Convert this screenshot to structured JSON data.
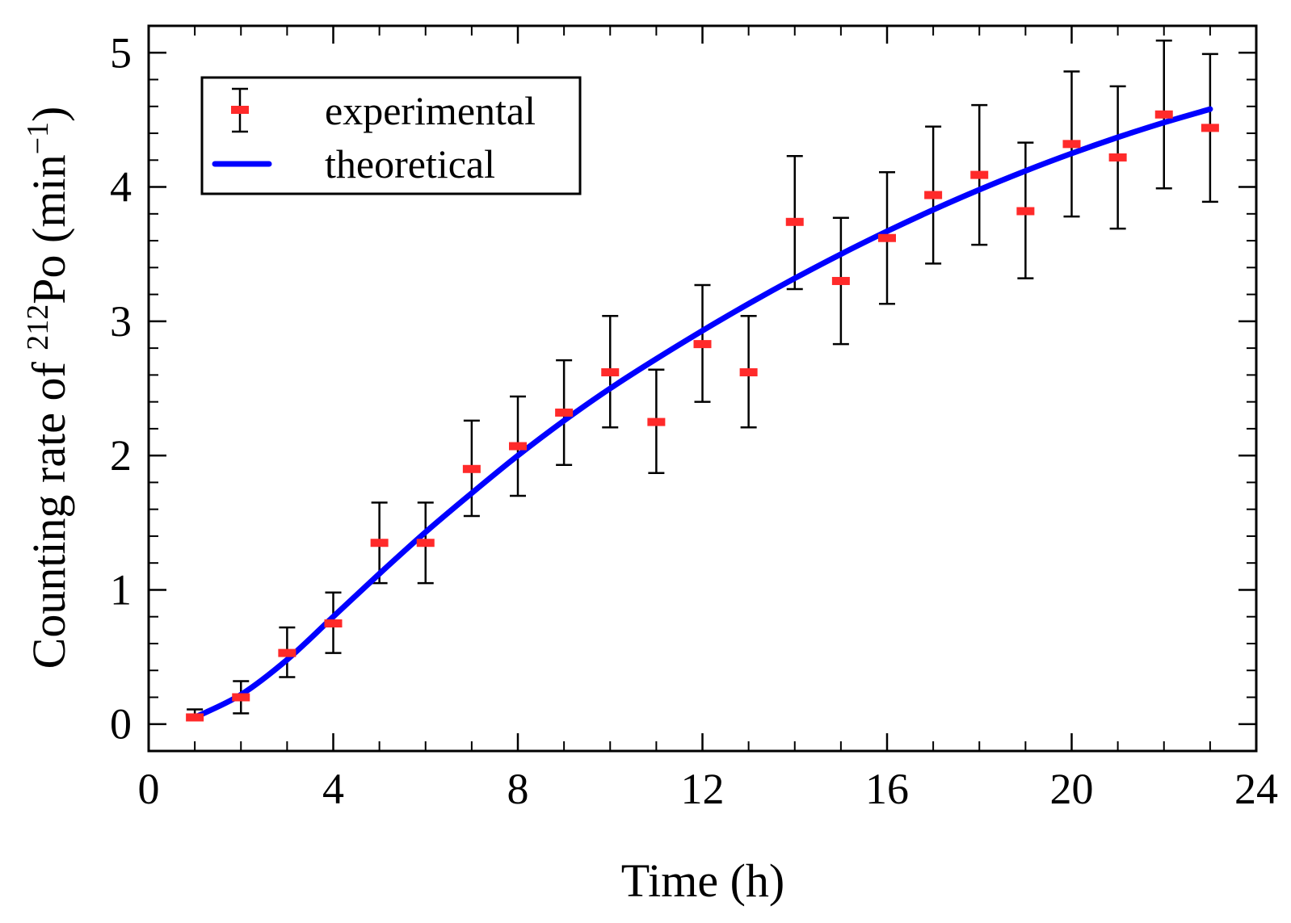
{
  "chart_data": {
    "type": "scatter",
    "title": "",
    "xlabel": "Time (h)",
    "ylabel": {
      "prefix": "Counting rate of ",
      "isotope_mass": "212",
      "element": "Po",
      "unit_open": " (min",
      "unit_exp": "−1",
      "unit_close": ")"
    },
    "xlim": [
      0,
      24
    ],
    "ylim": [
      -0.2,
      5.2
    ],
    "xticks": [
      0,
      4,
      8,
      12,
      16,
      20,
      24
    ],
    "xtick_labels": [
      "0",
      "4",
      "8",
      "12",
      "16",
      "20",
      "24"
    ],
    "yticks": [
      0,
      1,
      2,
      3,
      4,
      5
    ],
    "ytick_labels": [
      "0",
      "1",
      "2",
      "3",
      "4",
      "5"
    ],
    "legend_position": "top-left",
    "series": [
      {
        "name": "experimental",
        "kind": "errorbar",
        "color": "#ff2a2a",
        "error_color": "#000000",
        "x": [
          1,
          2,
          3,
          4,
          5,
          6,
          7,
          8,
          9,
          10,
          11,
          12,
          13,
          14,
          15,
          16,
          17,
          18,
          19,
          20,
          21,
          22,
          23
        ],
        "y": [
          0.05,
          0.2,
          0.53,
          0.75,
          1.35,
          1.35,
          1.9,
          2.07,
          2.32,
          2.62,
          2.25,
          2.83,
          2.62,
          3.74,
          3.3,
          3.62,
          3.94,
          4.09,
          3.82,
          4.32,
          4.22,
          4.54,
          4.44
        ],
        "err_low": [
          0.0,
          0.12,
          0.18,
          0.22,
          0.3,
          0.3,
          0.35,
          0.37,
          0.39,
          0.41,
          0.38,
          0.43,
          0.41,
          0.5,
          0.47,
          0.49,
          0.51,
          0.52,
          0.5,
          0.54,
          0.53,
          0.55,
          0.55
        ],
        "err_high": [
          0.06,
          0.12,
          0.19,
          0.23,
          0.3,
          0.3,
          0.36,
          0.37,
          0.39,
          0.42,
          0.39,
          0.44,
          0.42,
          0.49,
          0.47,
          0.49,
          0.51,
          0.52,
          0.51,
          0.54,
          0.53,
          0.55,
          0.55
        ]
      },
      {
        "name": "theoretical",
        "kind": "line",
        "color": "#0000ff",
        "x": [
          1,
          2,
          3,
          4,
          5,
          6,
          7,
          8,
          9,
          10,
          11,
          12,
          13,
          14,
          15,
          16,
          17,
          18,
          19,
          20,
          21,
          22,
          23
        ],
        "y": [
          0.05,
          0.22,
          0.48,
          0.8,
          1.12,
          1.43,
          1.72,
          2.0,
          2.26,
          2.5,
          2.72,
          2.93,
          3.13,
          3.32,
          3.5,
          3.67,
          3.83,
          3.98,
          4.12,
          4.25,
          4.37,
          4.48,
          4.58
        ]
      }
    ]
  }
}
